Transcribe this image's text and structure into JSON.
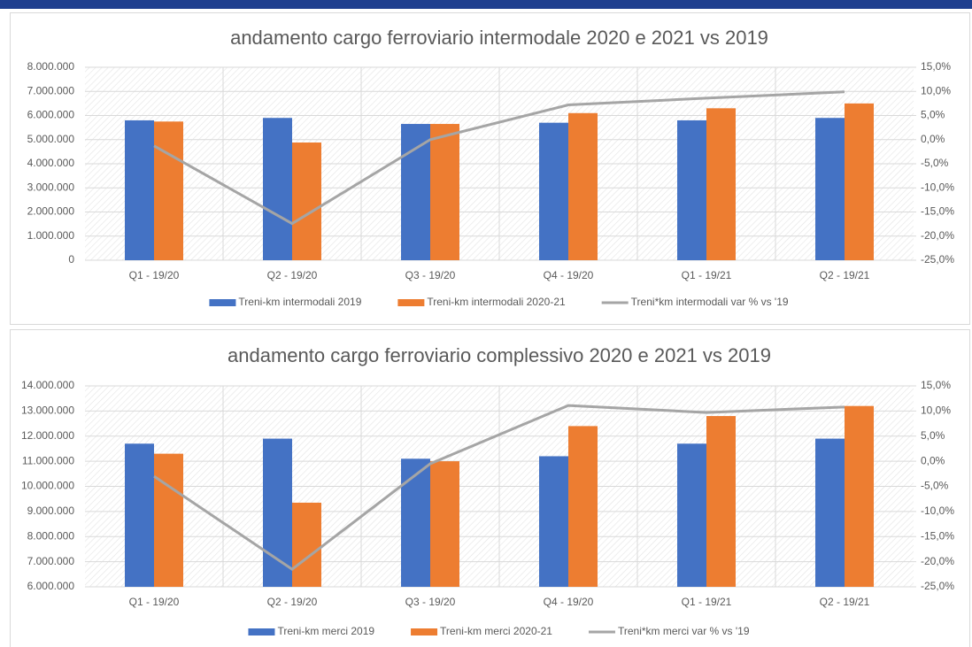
{
  "chart_data": [
    {
      "type": "bar",
      "title": "andamento cargo ferroviario intermodale 2020 e 2021 vs 2019",
      "categories": [
        "Q1 - 19/20",
        "Q2 - 19/20",
        "Q3 - 19/20",
        "Q4 - 19/20",
        "Q1 - 19/21",
        "Q2 - 19/21"
      ],
      "series": [
        {
          "name": "Treni-km intermodali 2019",
          "color": "#4472c4",
          "axis": "y",
          "values": [
            5800000,
            5900000,
            5650000,
            5700000,
            5800000,
            5900000
          ]
        },
        {
          "name": "Treni-km intermodali 2020-21",
          "color": "#ed7d31",
          "axis": "y",
          "values": [
            5750000,
            4880000,
            5650000,
            6100000,
            6300000,
            6500000
          ]
        },
        {
          "name": "Treni*km intermodali var % vs '19",
          "color": "#a5a5a5",
          "axis": "y2",
          "type": "line",
          "values": [
            -1.3,
            -17.4,
            0,
            7.2,
            8.6,
            9.9
          ]
        }
      ],
      "ylim": [
        0,
        8000000
      ],
      "yticks": [
        0,
        {
          "value": 1000000,
          "label": "1.000.000"
        },
        {
          "value": 2000000,
          "label": "2.000.000"
        },
        {
          "value": 3000000,
          "label": "3.000.000"
        },
        {
          "value": 4000000,
          "label": "4.000.000"
        },
        {
          "value": 5000000,
          "label": "5.000.000"
        },
        {
          "value": 6000000,
          "label": "6.000.000"
        },
        {
          "value": 7000000,
          "label": "7.000.000"
        },
        {
          "value": 8000000,
          "label": "8.000.000"
        }
      ],
      "y2lim": [
        -25,
        15
      ],
      "y2ticks": [
        {
          "value": -25,
          "label": "-25,0%"
        },
        {
          "value": -20,
          "label": "-20,0%"
        },
        {
          "value": -15,
          "label": "-15,0%"
        },
        {
          "value": -10,
          "label": "-10,0%"
        },
        {
          "value": -5,
          "label": "-5,0%"
        },
        {
          "value": 0,
          "label": "0,0%"
        },
        {
          "value": 5,
          "label": "5,0%"
        },
        {
          "value": 10,
          "label": "10,0%"
        },
        {
          "value": 15,
          "label": "15,0%"
        }
      ],
      "grid": true,
      "legend": "bottom"
    },
    {
      "type": "bar",
      "title": "andamento cargo ferroviario complessivo 2020 e 2021 vs 2019",
      "categories": [
        "Q1 - 19/20",
        "Q2 - 19/20",
        "Q3 - 19/20",
        "Q4 - 19/20",
        "Q1 - 19/21",
        "Q2 - 19/21"
      ],
      "series": [
        {
          "name": "Treni-km merci 2019",
          "color": "#4472c4",
          "axis": "y",
          "values": [
            11700000,
            11900000,
            11100000,
            11200000,
            11700000,
            11900000
          ]
        },
        {
          "name": "Treni-km merci 2020-21",
          "color": "#ed7d31",
          "axis": "y",
          "values": [
            11300000,
            9350000,
            11000000,
            12400000,
            12800000,
            13200000
          ]
        },
        {
          "name": "Treni*km merci var % vs '19",
          "color": "#a5a5a5",
          "axis": "y2",
          "type": "line",
          "values": [
            -3.0,
            -21.5,
            -0.5,
            11.1,
            9.7,
            10.8
          ]
        }
      ],
      "ylim": [
        6000000,
        14000000
      ],
      "yticks": [
        {
          "value": 6000000,
          "label": "6.000.000"
        },
        {
          "value": 7000000,
          "label": "7.000.000"
        },
        {
          "value": 8000000,
          "label": "8.000.000"
        },
        {
          "value": 9000000,
          "label": "9.000.000"
        },
        {
          "value": 10000000,
          "label": "10.000.000"
        },
        {
          "value": 11000000,
          "label": "11.000.000"
        },
        {
          "value": 12000000,
          "label": "12.000.000"
        },
        {
          "value": 13000000,
          "label": "13.000.000"
        },
        {
          "value": 14000000,
          "label": "14.000.000"
        }
      ],
      "y2lim": [
        -25,
        15
      ],
      "y2ticks": [
        {
          "value": -25,
          "label": "-25,0%"
        },
        {
          "value": -20,
          "label": "-20,0%"
        },
        {
          "value": -15,
          "label": "-15,0%"
        },
        {
          "value": -10,
          "label": "-10,0%"
        },
        {
          "value": -5,
          "label": "-5,0%"
        },
        {
          "value": 0,
          "label": "0,0%"
        },
        {
          "value": 5,
          "label": "5,0%"
        },
        {
          "value": 10,
          "label": "10,0%"
        },
        {
          "value": 15,
          "label": "15,0%"
        }
      ],
      "grid": true,
      "legend": "bottom"
    }
  ]
}
